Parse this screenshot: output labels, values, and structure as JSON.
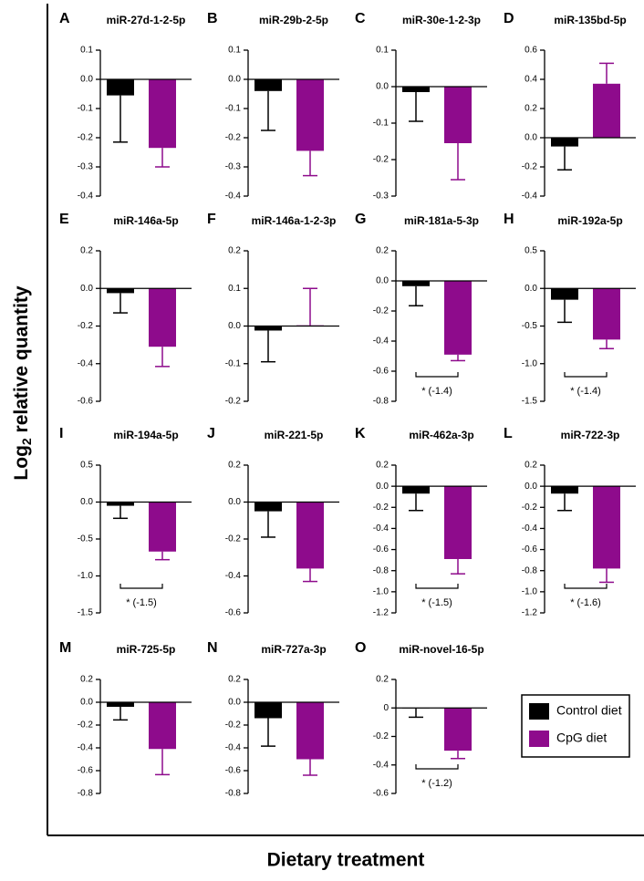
{
  "y_label": {
    "text": "Log",
    "subscript": "2",
    "rest": " relative quantity"
  },
  "x_label": "Dietary treatment",
  "legend": [
    {
      "name": "Control diet",
      "color": "#000000"
    },
    {
      "name": "CpG diet",
      "color": "#8e0b8c"
    }
  ],
  "chart_data": [
    {
      "type": "bar",
      "label": "A",
      "title": "miR-27d-1-2-5p",
      "values": [
        -0.055,
        -0.235
      ],
      "errors": [
        0.16,
        0.065
      ],
      "ylim": [
        -0.4,
        0.1
      ],
      "yticks": [
        0.1,
        {
          "value": 0,
          "label": "0.0"
        },
        -0.1,
        -0.2,
        -0.3,
        -0.4
      ]
    },
    {
      "type": "bar",
      "label": "B",
      "title": "miR-29b-2-5p",
      "values": [
        -0.04,
        -0.245
      ],
      "errors": [
        0.135,
        0.085
      ],
      "ylim": [
        -0.4,
        0.1
      ],
      "yticks": [
        0.1,
        {
          "value": 0,
          "label": "0.0"
        },
        -0.1,
        -0.2,
        -0.3,
        -0.4
      ]
    },
    {
      "type": "bar",
      "label": "C",
      "title": "miR-30e-1-2-3p",
      "values": [
        -0.015,
        -0.155
      ],
      "errors": [
        0.08,
        0.1
      ],
      "ylim": [
        -0.3,
        0.1
      ],
      "yticks": [
        0.1,
        {
          "value": 0,
          "label": "0.0"
        },
        -0.1,
        -0.2,
        -0.3
      ]
    },
    {
      "type": "bar",
      "label": "D",
      "title": "miR-135bd-5p",
      "values": [
        -0.06,
        0.37
      ],
      "errors": [
        0.16,
        0.14
      ],
      "ylim": [
        -0.4,
        0.6
      ],
      "yticks": [
        0.6,
        0.4,
        0.2,
        {
          "value": 0,
          "label": "0.0"
        },
        -0.2,
        -0.4
      ]
    },
    {
      "type": "bar",
      "label": "E",
      "title": "miR-146a-5p",
      "values": [
        -0.025,
        -0.31
      ],
      "errors": [
        0.105,
        0.105
      ],
      "ylim": [
        -0.6,
        0.2
      ],
      "yticks": [
        0.2,
        {
          "value": 0,
          "label": "0.0"
        },
        -0.2,
        -0.4,
        -0.6
      ]
    },
    {
      "type": "bar",
      "label": "F",
      "title": "miR-146a-1-2-3p",
      "values": [
        -0.012,
        0.002
      ],
      "errors": [
        0.083,
        0.098
      ],
      "ylim": [
        -0.2,
        0.2
      ],
      "yticks": [
        0.2,
        0.1,
        {
          "value": 0,
          "label": "0.0"
        },
        -0.1,
        -0.2
      ]
    },
    {
      "type": "bar",
      "label": "G",
      "title": "miR-181a-5-3p",
      "values": [
        -0.035,
        -0.49
      ],
      "errors": [
        0.13,
        0.04
      ],
      "ylim": [
        -0.8,
        0.2
      ],
      "yticks": [
        0.2,
        {
          "value": 0,
          "label": "0.0"
        },
        -0.2,
        -0.4,
        -0.6,
        -0.8
      ],
      "annotation": "* (-1.4)"
    },
    {
      "type": "bar",
      "label": "H",
      "title": "miR-192a-5p",
      "values": [
        -0.15,
        -0.68
      ],
      "errors": [
        0.3,
        0.12
      ],
      "ylim": [
        -1.5,
        0.5
      ],
      "yticks": [
        0.5,
        {
          "value": 0,
          "label": "0.0"
        },
        -0.5,
        {
          "value": -1,
          "label": "-1.0"
        },
        -1.5
      ],
      "annotation": "* (-1.4)"
    },
    {
      "type": "bar",
      "label": "I",
      "title": "miR-194a-5p",
      "values": [
        -0.05,
        -0.67
      ],
      "errors": [
        0.17,
        0.11
      ],
      "ylim": [
        -1.5,
        0.5
      ],
      "yticks": [
        0.5,
        {
          "value": 0,
          "label": "0.0"
        },
        -0.5,
        {
          "value": -1,
          "label": "-1.0"
        },
        -1.5
      ],
      "annotation": "* (-1.5)"
    },
    {
      "type": "bar",
      "label": "J",
      "title": "miR-221-5p",
      "values": [
        -0.05,
        -0.36
      ],
      "errors": [
        0.14,
        0.07
      ],
      "ylim": [
        -0.6,
        0.2
      ],
      "yticks": [
        0.2,
        {
          "value": 0,
          "label": "0.0"
        },
        -0.2,
        -0.4,
        -0.6
      ]
    },
    {
      "type": "bar",
      "label": "K",
      "title": "miR-462a-3p",
      "values": [
        -0.07,
        -0.69
      ],
      "errors": [
        0.16,
        0.14
      ],
      "ylim": [
        -1.2,
        0.2
      ],
      "yticks": [
        0.2,
        {
          "value": 0,
          "label": "0.0"
        },
        -0.2,
        -0.4,
        -0.6,
        -0.8,
        {
          "value": -1,
          "label": "-1.0"
        },
        -1.2
      ],
      "annotation": "* (-1.5)"
    },
    {
      "type": "bar",
      "label": "L",
      "title": "miR-722-3p",
      "values": [
        -0.07,
        -0.78
      ],
      "errors": [
        0.16,
        0.13
      ],
      "ylim": [
        -1.2,
        0.2
      ],
      "yticks": [
        0.2,
        {
          "value": 0,
          "label": "0.0"
        },
        -0.2,
        -0.4,
        -0.6,
        -0.8,
        {
          "value": -1,
          "label": "-1.0"
        },
        -1.2
      ],
      "annotation": "* (-1.6)"
    },
    {
      "type": "bar",
      "label": "M",
      "title": "miR-725-5p",
      "values": [
        -0.04,
        -0.41
      ],
      "errors": [
        0.115,
        0.225
      ],
      "ylim": [
        -0.8,
        0.2
      ],
      "yticks": [
        0.2,
        {
          "value": 0,
          "label": "0.0"
        },
        -0.2,
        -0.4,
        -0.6,
        -0.8
      ]
    },
    {
      "type": "bar",
      "label": "N",
      "title": "miR-727a-3p",
      "values": [
        -0.14,
        -0.5
      ],
      "errors": [
        0.245,
        0.14
      ],
      "ylim": [
        -0.8,
        0.2
      ],
      "yticks": [
        0.2,
        {
          "value": 0,
          "label": "0.0"
        },
        -0.2,
        -0.4,
        -0.6,
        -0.8
      ]
    },
    {
      "type": "bar",
      "label": "O",
      "title": "miR-novel-16-5p",
      "values": [
        -0.003,
        -0.3
      ],
      "errors": [
        0.062,
        0.055
      ],
      "ylim": [
        -0.6,
        0.2
      ],
      "yticks": [
        0.2,
        0,
        -0.2,
        -0.4,
        -0.6
      ],
      "annotation": "* (-1.2)"
    }
  ]
}
